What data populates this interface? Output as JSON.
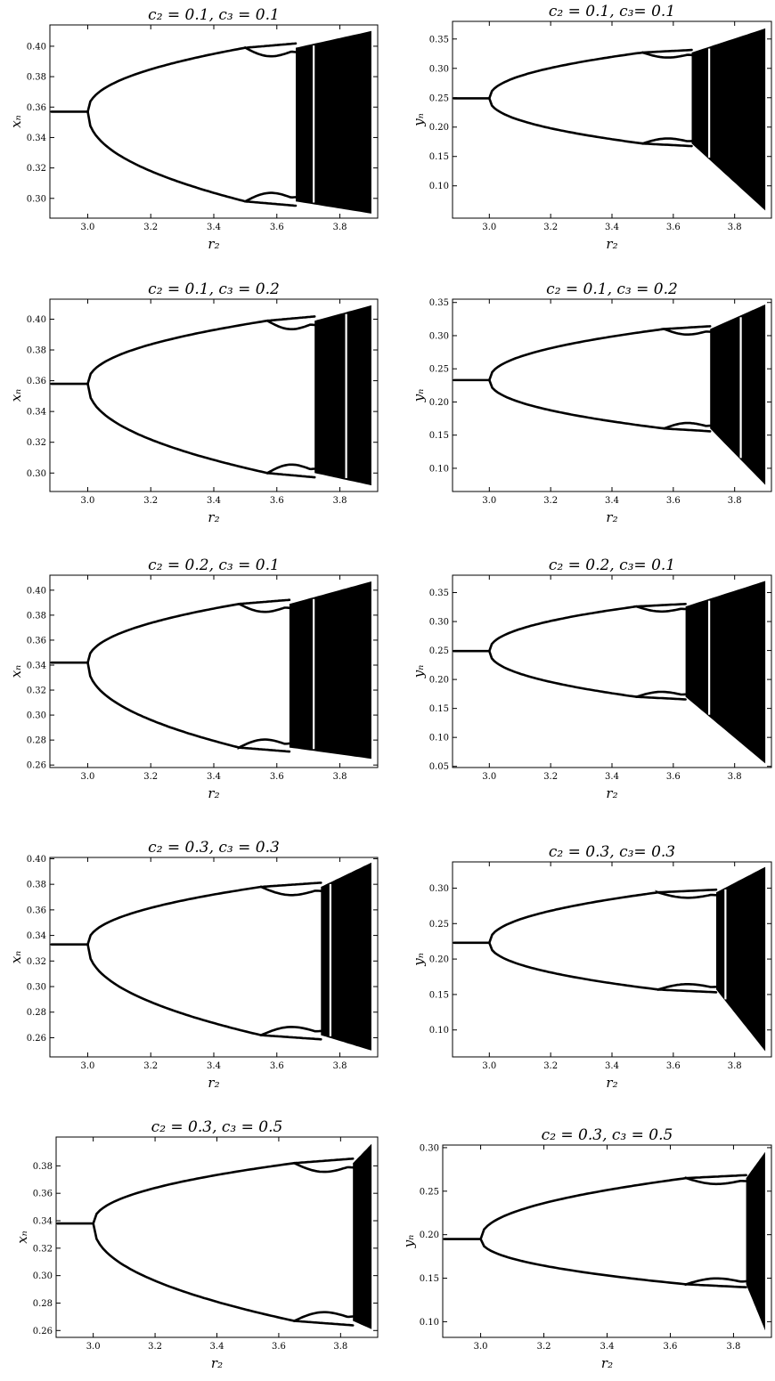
{
  "chart_data": [
    {
      "type": "scatter",
      "title": "c₂ = 0.1, c₃ = 0.1",
      "xlabel": "r₂",
      "ylabel": "xₙ",
      "xlim": [
        2.88,
        3.92
      ],
      "ylim": [
        0.287,
        0.414
      ],
      "xticks": [
        "3.0",
        "3.2",
        "3.4",
        "3.6",
        "3.8"
      ],
      "yticks": [
        "0.30",
        "0.32",
        "0.34",
        "0.36",
        "0.38",
        "0.40"
      ],
      "fixed_point": 0.357,
      "split_r": 3.0,
      "upper_end": 0.399,
      "lower_end": 0.298,
      "chaos_start": 3.5,
      "chaos_full": 3.66,
      "chaos_end": 3.9,
      "max": 0.41,
      "min": 0.29,
      "gap_r": 3.717
    },
    {
      "type": "scatter",
      "title": "c₂ = 0.1, c₃= 0.1",
      "xlabel": "r₂",
      "ylabel": "yₙ",
      "xlim": [
        2.88,
        3.92
      ],
      "ylim": [
        0.045,
        0.38
      ],
      "xticks": [
        "3.0",
        "3.2",
        "3.4",
        "3.6",
        "3.8"
      ],
      "yticks": [
        "0.10",
        "0.15",
        "0.20",
        "0.25",
        "0.30",
        "0.35"
      ],
      "fixed_point": 0.249,
      "split_r": 3.0,
      "upper_end": 0.327,
      "lower_end": 0.172,
      "chaos_start": 3.5,
      "chaos_full": 3.66,
      "chaos_end": 3.9,
      "max": 0.368,
      "min": 0.058,
      "gap_r": 3.717
    },
    {
      "type": "scatter",
      "title": "c₂ = 0.1, c₃ = 0.2",
      "xlabel": "r₂",
      "ylabel": "xₙ",
      "xlim": [
        2.88,
        3.92
      ],
      "ylim": [
        0.288,
        0.413
      ],
      "xticks": [
        "3.0",
        "3.2",
        "3.4",
        "3.6",
        "3.8"
      ],
      "yticks": [
        "0.30",
        "0.32",
        "0.34",
        "0.36",
        "0.38",
        "0.40"
      ],
      "fixed_point": 0.358,
      "split_r": 3.0,
      "upper_end": 0.399,
      "lower_end": 0.3,
      "chaos_start": 3.57,
      "chaos_full": 3.72,
      "chaos_end": 3.9,
      "max": 0.409,
      "min": 0.292,
      "gap_r": 3.82
    },
    {
      "type": "scatter",
      "title": "c₂ = 0.1, c₃ = 0.2",
      "xlabel": "r₂",
      "ylabel": "yₙ",
      "xlim": [
        2.88,
        3.92
      ],
      "ylim": [
        0.065,
        0.355
      ],
      "xticks": [
        "3.0",
        "3.2",
        "3.4",
        "3.6",
        "3.8"
      ],
      "yticks": [
        "0.10",
        "0.15",
        "0.20",
        "0.25",
        "0.30",
        "0.35"
      ],
      "fixed_point": 0.233,
      "split_r": 3.0,
      "upper_end": 0.31,
      "lower_end": 0.16,
      "chaos_start": 3.57,
      "chaos_full": 3.72,
      "chaos_end": 3.9,
      "max": 0.347,
      "min": 0.075,
      "gap_r": 3.82
    },
    {
      "type": "scatter",
      "title": "c₂ = 0.2, c₃ = 0.1",
      "xlabel": "r₂",
      "ylabel": "xₙ",
      "xlim": [
        2.88,
        3.92
      ],
      "ylim": [
        0.258,
        0.412
      ],
      "xticks": [
        "3.0",
        "3.2",
        "3.4",
        "3.6",
        "3.8"
      ],
      "yticks": [
        "0.26",
        "0.28",
        "0.30",
        "0.32",
        "0.34",
        "0.36",
        "0.38",
        "0.40"
      ],
      "fixed_point": 0.342,
      "split_r": 3.0,
      "upper_end": 0.389,
      "lower_end": 0.274,
      "chaos_start": 3.48,
      "chaos_full": 3.64,
      "chaos_end": 3.9,
      "max": 0.407,
      "min": 0.265,
      "gap_r": 3.717
    },
    {
      "type": "scatter",
      "title": "c₂ = 0.2, c₃= 0.1",
      "xlabel": "r₂",
      "ylabel": "yₙ",
      "xlim": [
        2.88,
        3.92
      ],
      "ylim": [
        0.048,
        0.38
      ],
      "xticks": [
        "3.0",
        "3.2",
        "3.4",
        "3.6",
        "3.8"
      ],
      "yticks": [
        "0.05",
        "0.10",
        "0.15",
        "0.20",
        "0.25",
        "0.30",
        "0.35"
      ],
      "fixed_point": 0.249,
      "split_r": 3.0,
      "upper_end": 0.326,
      "lower_end": 0.17,
      "chaos_start": 3.48,
      "chaos_full": 3.64,
      "chaos_end": 3.9,
      "max": 0.37,
      "min": 0.055,
      "gap_r": 3.717
    },
    {
      "type": "scatter",
      "title": "c₂ = 0.3, c₃ = 0.3",
      "xlabel": "r₂",
      "ylabel": "xₙ",
      "xlim": [
        2.88,
        3.92
      ],
      "ylim": [
        0.245,
        0.401
      ],
      "xticks": [
        "3.0",
        "3.2",
        "3.4",
        "3.6",
        "3.8"
      ],
      "yticks": [
        "0.26",
        "0.28",
        "0.30",
        "0.32",
        "0.34",
        "0.36",
        "0.38",
        "0.40"
      ],
      "fixed_point": 0.333,
      "split_r": 3.0,
      "upper_end": 0.378,
      "lower_end": 0.262,
      "chaos_start": 3.55,
      "chaos_full": 3.74,
      "chaos_end": 3.9,
      "max": 0.397,
      "min": 0.25,
      "gap_r": 3.77
    },
    {
      "type": "scatter",
      "title": "c₂ = 0.3, c₃= 0.3",
      "xlabel": "r₂",
      "ylabel": "yₙ",
      "xlim": [
        2.88,
        3.92
      ],
      "ylim": [
        0.062,
        0.337
      ],
      "xticks": [
        "3.0",
        "3.2",
        "3.4",
        "3.6",
        "3.8"
      ],
      "yticks": [
        "0.10",
        "0.15",
        "0.20",
        "0.25",
        "0.30"
      ],
      "fixed_point": 0.223,
      "split_r": 3.0,
      "upper_end": 0.294,
      "lower_end": 0.157,
      "chaos_start": 3.55,
      "chaos_full": 3.74,
      "chaos_end": 3.9,
      "max": 0.33,
      "min": 0.07,
      "gap_r": 3.77
    },
    {
      "type": "scatter",
      "title": "c₂ = 0.3, c₃ = 0.5",
      "xlabel": "r₂",
      "ylabel": "xₙ",
      "xlim": [
        2.88,
        3.92
      ],
      "ylim": [
        0.255,
        0.401
      ],
      "xticks": [
        "3.0",
        "3.2",
        "3.4",
        "3.6",
        "3.8"
      ],
      "yticks": [
        "0.26",
        "0.28",
        "0.30",
        "0.32",
        "0.34",
        "0.36",
        "0.38"
      ],
      "fixed_point": 0.338,
      "split_r": 3.0,
      "upper_end": 0.382,
      "lower_end": 0.267,
      "chaos_start": 3.65,
      "chaos_full": 3.84,
      "chaos_end": 3.9,
      "max": 0.396,
      "min": 0.261,
      "gap_r": 0
    },
    {
      "type": "scatter",
      "title": "c₂ = 0.3, c₃ = 0.5",
      "xlabel": "r₂",
      "ylabel": "yₙ",
      "xlim": [
        2.88,
        3.92
      ],
      "ylim": [
        0.082,
        0.303
      ],
      "xticks": [
        "3.0",
        "3.2",
        "3.4",
        "3.6",
        "3.8"
      ],
      "yticks": [
        "0.10",
        "0.15",
        "0.20",
        "0.25",
        "0.30"
      ],
      "fixed_point": 0.195,
      "split_r": 3.0,
      "upper_end": 0.265,
      "lower_end": 0.143,
      "chaos_start": 3.65,
      "chaos_full": 3.84,
      "chaos_end": 3.9,
      "max": 0.295,
      "min": 0.09,
      "gap_r": 0
    }
  ]
}
